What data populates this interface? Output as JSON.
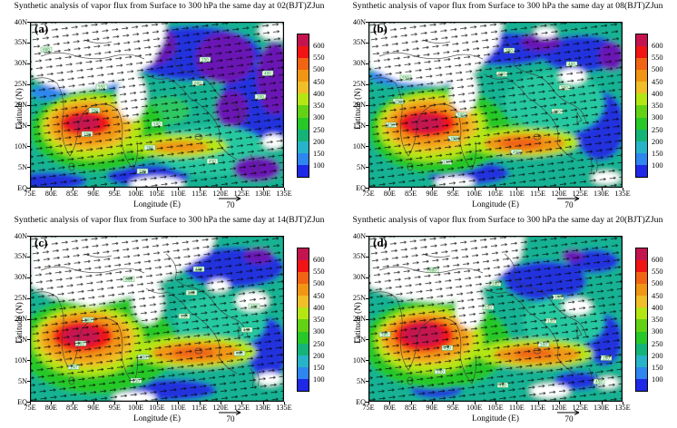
{
  "figure": {
    "panels": [
      {
        "id": "a",
        "label": "(a)",
        "time": "02(BJT)",
        "title": "Synthetic analysis of vapor flux from Surface to 300 hPa the same day at 02(BJT)ZJun"
      },
      {
        "id": "b",
        "label": "(b)",
        "time": "08(BJT)",
        "title": "Synthetic analysis of vapor flux from Surface to 300 hPa the same day at 08(BJT)ZJun"
      },
      {
        "id": "c",
        "label": "(c)",
        "time": "14(BJT)",
        "title": "Synthetic analysis of vapor flux from Surface to 300 hPa the same day at 14(BJT)ZJun"
      },
      {
        "id": "d",
        "label": "(d)",
        "time": "20(BJT)",
        "title": "Synthetic analysis of vapor flux from Surface to 300 hPa the same day at 20(BJT)ZJun"
      }
    ],
    "axes": {
      "x_label": "Longitude (E)",
      "x_ticks": [
        "75E",
        "80E",
        "85E",
        "90E",
        "95E",
        "100E",
        "105E",
        "110E",
        "115E",
        "120E",
        "125E",
        "130E",
        "135E"
      ],
      "y_label": "Latitude (N)",
      "y_ticks_bottom_to_top": [
        "EQ",
        "5N",
        "10N",
        "15N",
        "20N",
        "25N",
        "30N",
        "35N",
        "40N"
      ]
    },
    "colorbar": {
      "ticks_top_to_bottom": [
        "600",
        "550",
        "500",
        "450",
        "400",
        "350",
        "300",
        "250",
        "200",
        "150",
        "100"
      ],
      "colors_top_to_bottom": [
        "#c41450",
        "#f01414",
        "#f06414",
        "#f09614",
        "#f0be28",
        "#b4e614",
        "#64d214",
        "#28c828",
        "#14b478",
        "#28b4c8",
        "#2e86ee",
        "#1e28e6"
      ],
      "below_scale_map_color": "#6a14b4"
    },
    "reference_vector": {
      "label": "70"
    }
  },
  "chart_data": {
    "type": "heatmap",
    "title": "Synthetic analysis of vapor flux from Surface to 300 hPa (four synoptic times, same day)",
    "panels": [
      {
        "label": "(a)",
        "time": "02(BJT)ZJun"
      },
      {
        "label": "(b)",
        "time": "08(BJT)ZJun"
      },
      {
        "label": "(c)",
        "time": "14(BJT)ZJun"
      },
      {
        "label": "(d)",
        "time": "20(BJT)ZJun"
      }
    ],
    "x": {
      "label": "Longitude (E)",
      "ticks": [
        "75E",
        "80E",
        "85E",
        "90E",
        "95E",
        "100E",
        "105E",
        "110E",
        "115E",
        "120E",
        "125E",
        "130E",
        "135E"
      ],
      "range_deg_east": [
        75,
        135
      ]
    },
    "y": {
      "label": "Latitude (N)",
      "ticks": [
        "EQ",
        "5N",
        "10N",
        "15N",
        "20N",
        "25N",
        "30N",
        "35N",
        "40N"
      ],
      "range_deg_north": [
        0,
        40
      ]
    },
    "color_levels": [
      100,
      150,
      200,
      250,
      300,
      350,
      400,
      450,
      500,
      550,
      600
    ],
    "colors_low_to_high": [
      "#1e28e6",
      "#2e86ee",
      "#28b4c8",
      "#14b478",
      "#28c828",
      "#64d214",
      "#b4e614",
      "#f0be28",
      "#f09614",
      "#f06414",
      "#f01414",
      "#c41450"
    ],
    "below_scale_color_on_map": "#6a14b4",
    "vector_reference_magnitude": 70,
    "legend_position": "right of each panel",
    "grid": false,
    "annotations": [
      "Shaded field: vapor-flux magnitude; maxima exceeding 600 are centered near 85-90E, 12-17N in all four panels",
      "A secondary high-flux band (400-500) stretches eastward near 105-120E, 8-12N",
      "Black arrows show vapor-flux vectors; scale arrow below each panel = 70",
      "White unshaded region over the Tibetan Plateau (top-left of each panel); purple patches mark values below 100"
    ]
  }
}
